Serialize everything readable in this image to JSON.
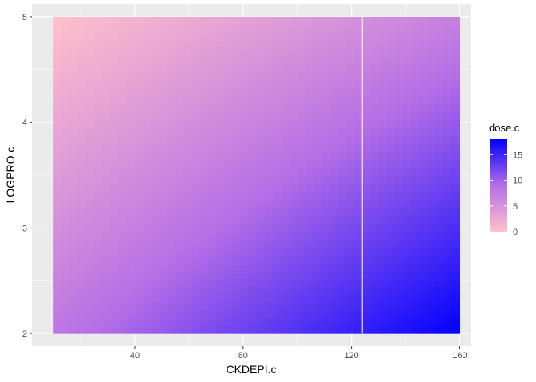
{
  "chart_data": {
    "type": "heatmap",
    "title": "",
    "xlabel": "CKDEPI.c",
    "ylabel": "LOGPRO.c",
    "xlim": [
      2,
      164
    ],
    "ylim": [
      1.88,
      5.12
    ],
    "x_ticks": [
      {
        "value": 40,
        "label": "40"
      },
      {
        "value": 80,
        "label": "80"
      },
      {
        "value": 120,
        "label": "120"
      },
      {
        "value": 160,
        "label": "160"
      }
    ],
    "y_ticks": [
      {
        "value": 2,
        "label": "2"
      },
      {
        "value": 3,
        "label": "3"
      },
      {
        "value": 4,
        "label": "4"
      },
      {
        "value": 5,
        "label": "5"
      }
    ],
    "x_range": [
      10,
      160
    ],
    "y_range": [
      2,
      5
    ],
    "grid": true,
    "fill": {
      "name": "dose.c",
      "low_color": "#FFC0CB",
      "high_color": "#0000FF",
      "range": [
        0,
        18
      ],
      "breaks": [
        {
          "value": 0,
          "label": "0"
        },
        {
          "value": 5,
          "label": "5"
        },
        {
          "value": 10,
          "label": "10"
        },
        {
          "value": 15,
          "label": "15"
        }
      ],
      "corner_values": {
        "x10_y5": 0,
        "x160_y5": 7,
        "x10_y2": 8,
        "x160_y2": 18
      }
    },
    "legend_position": "right",
    "reference_line_x": 124
  }
}
